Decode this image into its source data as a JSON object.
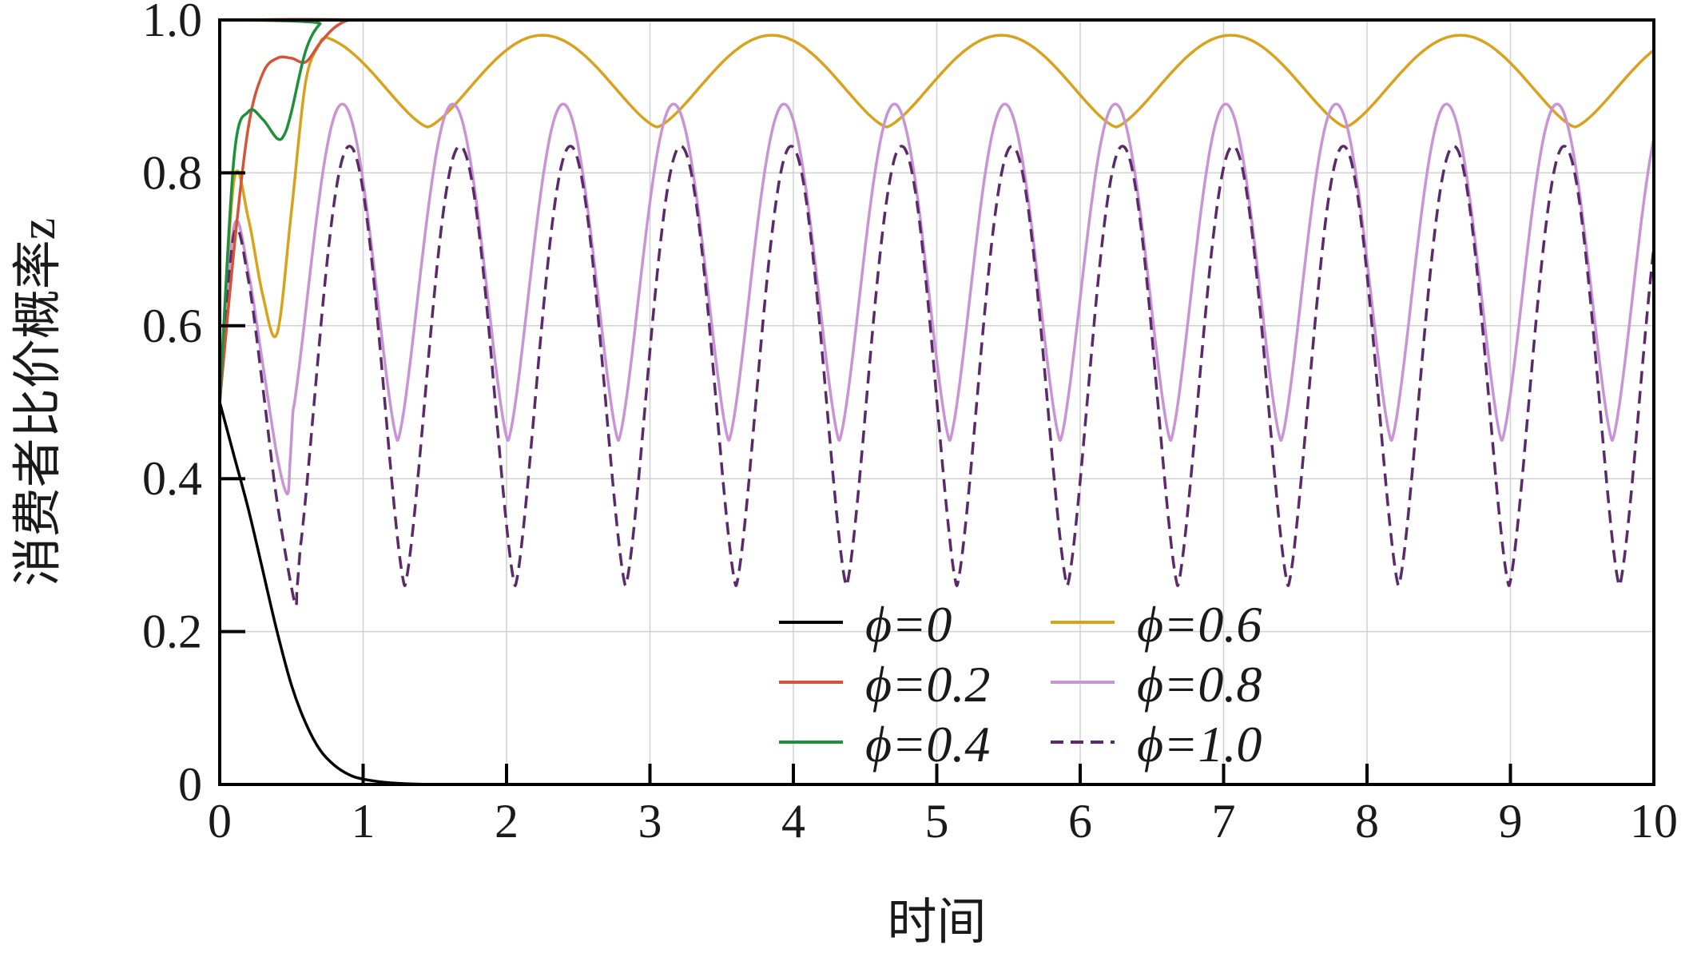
{
  "chart_data": {
    "type": "line",
    "title": "",
    "xlabel": "时间",
    "ylabel": "消费者比价概率z",
    "xlim": [
      0,
      10
    ],
    "ylim": [
      0,
      1.0
    ],
    "xticks": [
      "0",
      "1",
      "2",
      "3",
      "4",
      "5",
      "6",
      "7",
      "8",
      "9",
      "10"
    ],
    "yticks": [
      "0",
      "0.2",
      "0.4",
      "0.6",
      "0.8",
      "1.0"
    ],
    "grid": true,
    "legend_position": "bottom-center",
    "series": [
      {
        "name": "ϕ=0",
        "color": "#000000",
        "dash": "solid",
        "x": [
          0,
          0.1,
          0.2,
          0.3,
          0.4,
          0.5,
          0.6,
          0.7,
          0.8,
          0.9,
          1.0,
          1.2,
          1.5,
          2,
          10
        ],
        "y": [
          0.5,
          0.43,
          0.36,
          0.28,
          0.2,
          0.13,
          0.08,
          0.045,
          0.025,
          0.013,
          0.007,
          0.002,
          0,
          0,
          0
        ]
      },
      {
        "name": "ϕ=0.2",
        "color": "#d2553a",
        "dash": "solid",
        "x": [
          0,
          0.1,
          0.2,
          0.3,
          0.4,
          0.5,
          0.6,
          0.7,
          0.8,
          0.9,
          1.0,
          10
        ],
        "y": [
          0.5,
          0.7,
          0.86,
          0.93,
          0.95,
          0.95,
          0.945,
          0.97,
          0.99,
          1.0,
          1.0,
          1.0
        ]
      },
      {
        "name": "ϕ=0.4",
        "color": "#1e8f3a",
        "dash": "solid",
        "x": [
          0,
          0.1,
          0.2,
          0.3,
          0.4,
          0.45,
          0.5,
          0.6,
          0.7,
          0.8,
          10
        ],
        "y": [
          0.5,
          0.82,
          0.88,
          0.87,
          0.845,
          0.85,
          0.88,
          0.96,
          0.995,
          1.0,
          1.0
        ]
      },
      {
        "name": "ϕ=0.6",
        "color": "#d8a21c",
        "dash": "solid",
        "period": 1.6,
        "trough_phase": 1.45,
        "peak_value": 0.98,
        "trough_value": 0.86,
        "x": [
          0,
          0.1,
          0.2,
          0.3,
          0.4,
          0.5,
          0.6,
          0.7
        ],
        "y": [
          0.5,
          0.79,
          0.74,
          0.64,
          0.59,
          0.75,
          0.92,
          0.97
        ]
      },
      {
        "name": "ϕ=0.8",
        "color": "#c994d6",
        "dash": "solid",
        "period": 0.77,
        "trough_phase": 0.47,
        "peak_value": 0.89,
        "trough_value": 0.45,
        "x": [
          0,
          0.1,
          0.2,
          0.3,
          0.4,
          0.47
        ],
        "y": [
          0.5,
          0.73,
          0.67,
          0.55,
          0.43,
          0.38
        ]
      },
      {
        "name": "ϕ=1.0",
        "color": "#5a2a6a",
        "dash": "dashed",
        "period": 0.77,
        "trough_phase": 0.52,
        "peak_value": 0.835,
        "trough_value": 0.26,
        "x": [
          0,
          0.1,
          0.2,
          0.3,
          0.4,
          0.52
        ],
        "y": [
          0.5,
          0.72,
          0.66,
          0.52,
          0.37,
          0.24
        ]
      }
    ]
  }
}
